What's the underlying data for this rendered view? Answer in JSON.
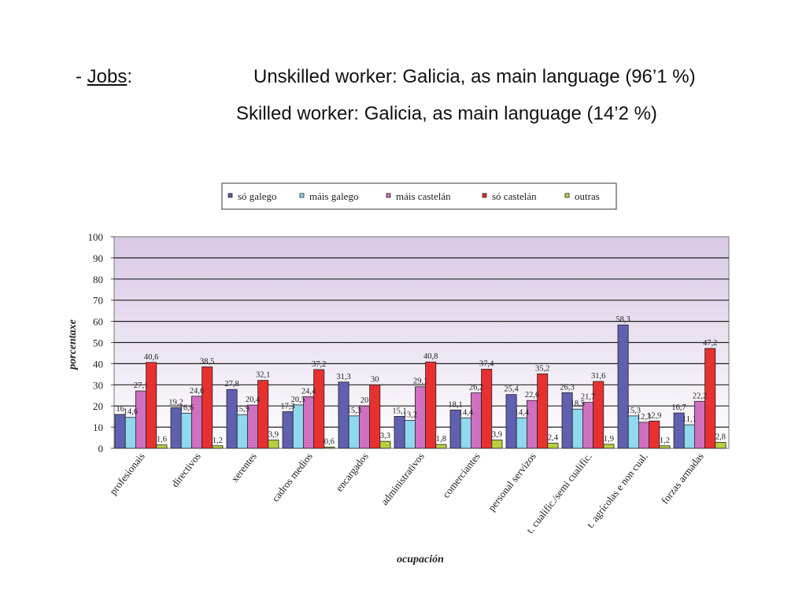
{
  "slide": {
    "dash": "- ",
    "jobs_label": "Jobs",
    "colon": ":",
    "line1_text": "Unskilled worker: Galicia, as main language (96’1 %)",
    "line2_text": "Skilled worker: Galicia, as main language (14’2 %)"
  },
  "chart_data": {
    "type": "bar",
    "title": "",
    "xlabel": "ocupación",
    "ylabel": "porcentaxe",
    "ylim": [
      0,
      100
    ],
    "yticks": [
      0,
      10,
      20,
      30,
      40,
      50,
      60,
      70,
      80,
      90,
      100
    ],
    "grid": true,
    "legend_position": "top",
    "categories": [
      "profesionais",
      "directivos",
      "xerentes",
      "cadros medios",
      "encargados",
      "administrativos",
      "comerciantes",
      "personal servizos",
      "t. cualific./semi cualific.",
      "t. agrícolas e non cual.",
      "forzas armadas"
    ],
    "series": [
      {
        "name": "só galego",
        "color": "#6060b0",
        "values": [
          16,
          19.2,
          27.8,
          17.3,
          31.3,
          15.1,
          18.1,
          25.4,
          26.3,
          58.3,
          16.7
        ],
        "labels": [
          "16",
          "19,2",
          "27,8",
          "17,3",
          "31,3",
          "15,1",
          "18,1",
          "25,4",
          "26,3",
          "58,3",
          "16,7"
        ]
      },
      {
        "name": "máis galego",
        "color": "#90d8ee",
        "values": [
          14.6,
          16.6,
          15.9,
          20.5,
          15.3,
          13.2,
          14.4,
          14.4,
          18.5,
          15.3,
          11.1
        ],
        "labels": [
          "14,6",
          "16,6",
          "15,9",
          "20,5",
          "15,3",
          "13,2",
          "14,4",
          "14,4",
          "18,5",
          "15,3",
          "11,1"
        ]
      },
      {
        "name": "máis castelán",
        "color": "#d070c0",
        "values": [
          27.1,
          24.6,
          20.4,
          24.4,
          20,
          29.1,
          26.2,
          22.6,
          21.7,
          12.3,
          22.2
        ],
        "labels": [
          "27,1",
          "24,6",
          "20,4",
          "24,4",
          "20",
          "29,1",
          "26,2",
          "22,6",
          "21,7",
          "12,3",
          "22,2"
        ]
      },
      {
        "name": "só castelán",
        "color": "#e83030",
        "values": [
          40.6,
          38.5,
          32.1,
          37.2,
          30,
          40.8,
          37.4,
          35.2,
          31.6,
          12.9,
          47.2
        ],
        "labels": [
          "40,6",
          "38,5",
          "32,1",
          "37,2",
          "30",
          "40,8",
          "37,4",
          "35,2",
          "31,6",
          "12,9",
          "47,2"
        ]
      },
      {
        "name": "outras",
        "color": "#b8d040",
        "values": [
          1.6,
          1.2,
          3.9,
          0.6,
          3.3,
          1.8,
          3.9,
          2.4,
          1.9,
          1.2,
          2.8
        ],
        "labels": [
          "1,6",
          "1,2",
          "3,9",
          "0,6",
          "3,3",
          "1,8",
          "3,9",
          "2,4",
          "1,9",
          "1,2",
          "2,8"
        ]
      }
    ]
  }
}
